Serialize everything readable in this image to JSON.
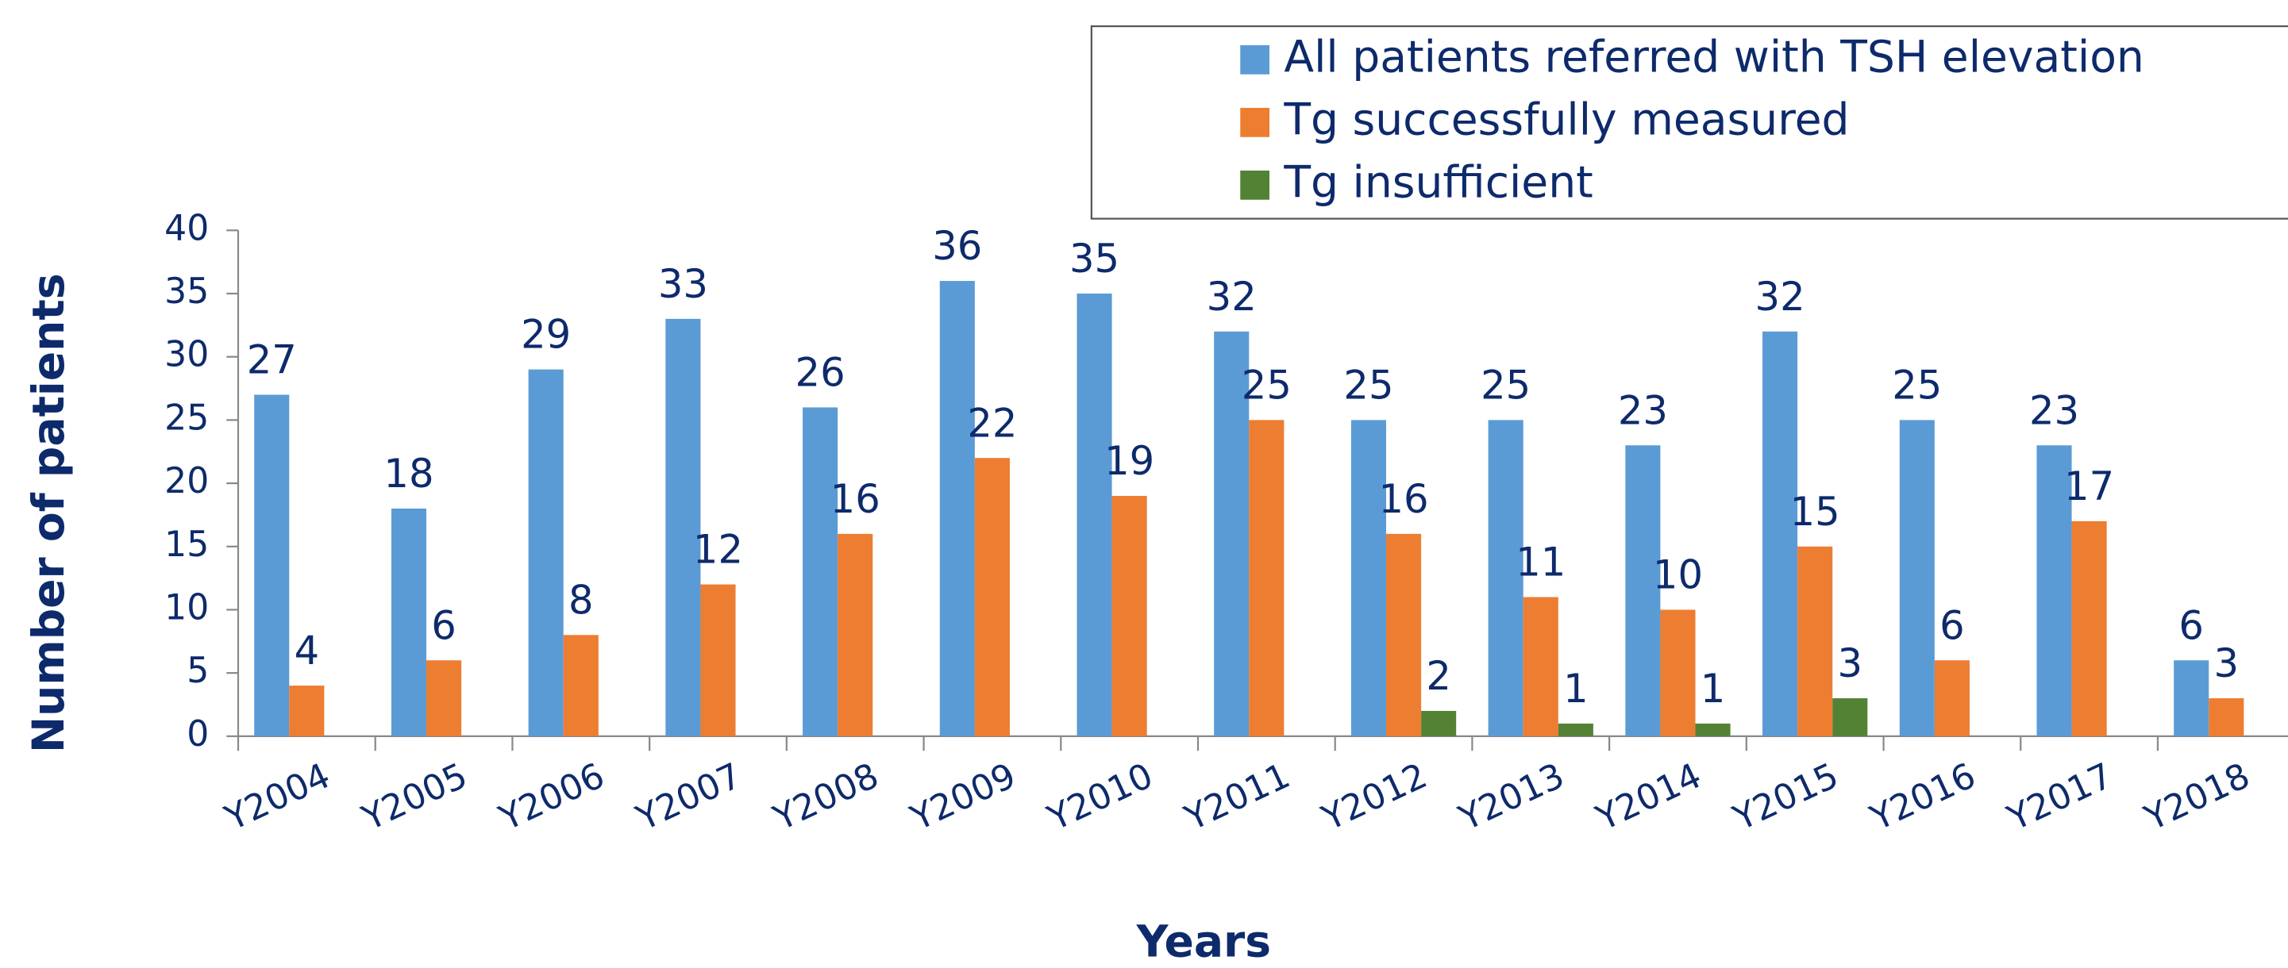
{
  "chart_data": {
    "type": "bar",
    "categories": [
      "Y2004",
      "Y2005",
      "Y2006",
      "Y2007",
      "Y2008",
      "Y2009",
      "Y2010",
      "Y2011",
      "Y2012",
      "Y2013",
      "Y2014",
      "Y2015",
      "Y2016",
      "Y2017",
      "Y2018"
    ],
    "series": [
      {
        "name": "All patients referred with TSH elevation",
        "color": "#5b9bd5",
        "values": [
          27,
          18,
          29,
          33,
          26,
          36,
          35,
          32,
          25,
          25,
          23,
          32,
          25,
          23,
          6
        ]
      },
      {
        "name": "Tg successfully measured",
        "color": "#ed7d31",
        "values": [
          4,
          6,
          8,
          12,
          16,
          22,
          19,
          25,
          16,
          11,
          10,
          15,
          6,
          17,
          3
        ]
      },
      {
        "name": "Tg insufficient",
        "color": "#548235",
        "values": [
          null,
          null,
          null,
          null,
          null,
          null,
          null,
          null,
          2,
          1,
          1,
          3,
          null,
          null,
          null
        ]
      }
    ],
    "xlabel": "Years",
    "ylabel": "Number of patients",
    "ylim": [
      0,
      40
    ],
    "yticks": [
      0,
      5,
      10,
      15,
      20,
      25,
      30,
      35,
      40
    ],
    "legend": "top-right"
  }
}
